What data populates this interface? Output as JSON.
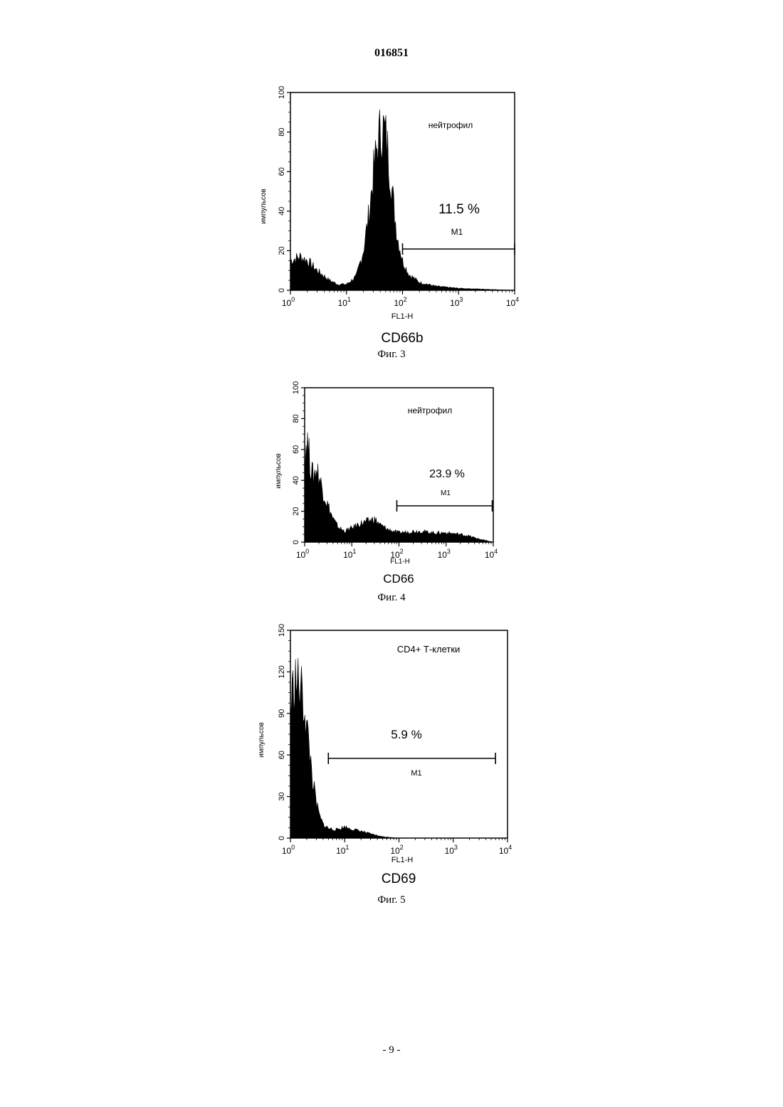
{
  "document_number": "016851",
  "page_number": "- 9 -",
  "figures": [
    {
      "caption": "Фиг. 3",
      "marker": "CD66b",
      "cell_label": "нейтрофил",
      "ylabel": "импульсов",
      "xlabel": "FL1-H",
      "percent": "11.5 %",
      "gate_label": "M1"
    },
    {
      "caption": "Фиг. 4",
      "marker": "CD66",
      "cell_label": "нейтрофил",
      "ylabel": "импульсов",
      "xlabel": "FL1-H",
      "percent": "23.9 %",
      "gate_label": "M1"
    },
    {
      "caption": "Фиг. 5",
      "marker": "CD69",
      "cell_label": "CD4+ Т-клетки",
      "ylabel": "импульсов",
      "xlabel": "FL1-H",
      "percent": "5.9 %",
      "gate_label": "M1"
    }
  ],
  "chart_data": [
    {
      "type": "area",
      "x_scale": "log",
      "xlim": [
        1,
        10000
      ],
      "ylim": [
        0,
        100
      ],
      "yticks": [
        "0",
        "20",
        "40",
        "60",
        "80",
        "100"
      ],
      "xticks": [
        "0",
        "1",
        "2",
        "3",
        "4"
      ],
      "gate": [
        100,
        10000
      ],
      "x": [
        1,
        1.5,
        2,
        3,
        5,
        7,
        10,
        15,
        20,
        25,
        30,
        35,
        40,
        45,
        50,
        55,
        60,
        70,
        80,
        100,
        130,
        200,
        400,
        1000,
        10000
      ],
      "y": [
        15,
        17,
        15,
        10,
        5,
        3,
        3,
        7,
        20,
        38,
        58,
        72,
        80,
        82,
        78,
        70,
        60,
        42,
        28,
        15,
        8,
        4,
        2,
        1,
        0
      ]
    },
    {
      "type": "area",
      "x_scale": "log",
      "xlim": [
        1,
        10000
      ],
      "ylim": [
        0,
        100
      ],
      "yticks": [
        "0",
        "20",
        "40",
        "60",
        "80",
        "100"
      ],
      "xticks": [
        "0",
        "1",
        "2",
        "3",
        "4"
      ],
      "gate": [
        90,
        9500
      ],
      "x": [
        1,
        1.1,
        1.3,
        1.5,
        1.8,
        2.2,
        3,
        4,
        5,
        7,
        10,
        15,
        20,
        30,
        40,
        60,
        100,
        200,
        300,
        500,
        1000,
        2000,
        3000,
        5000,
        10000
      ],
      "y": [
        45,
        70,
        52,
        42,
        48,
        38,
        25,
        15,
        10,
        7,
        9,
        12,
        13,
        15,
        11,
        8,
        6,
        7,
        7,
        6,
        6,
        5,
        4,
        2,
        0
      ]
    },
    {
      "type": "area",
      "x_scale": "log",
      "xlim": [
        1,
        10000
      ],
      "ylim": [
        0,
        150
      ],
      "yticks": [
        "0",
        "30",
        "60",
        "90",
        "120",
        "150"
      ],
      "xticks": [
        "0",
        "1",
        "2",
        "3",
        "4"
      ],
      "gate": [
        5,
        6000
      ],
      "x": [
        1,
        1.2,
        1.4,
        1.6,
        1.8,
        2,
        2.3,
        2.6,
        3,
        3.5,
        4,
        5,
        7,
        10,
        15,
        20,
        30,
        50,
        100,
        10000
      ],
      "y": [
        95,
        115,
        110,
        105,
        95,
        80,
        60,
        40,
        25,
        15,
        10,
        7,
        6,
        8,
        6,
        5,
        3,
        1,
        0,
        0
      ]
    }
  ]
}
